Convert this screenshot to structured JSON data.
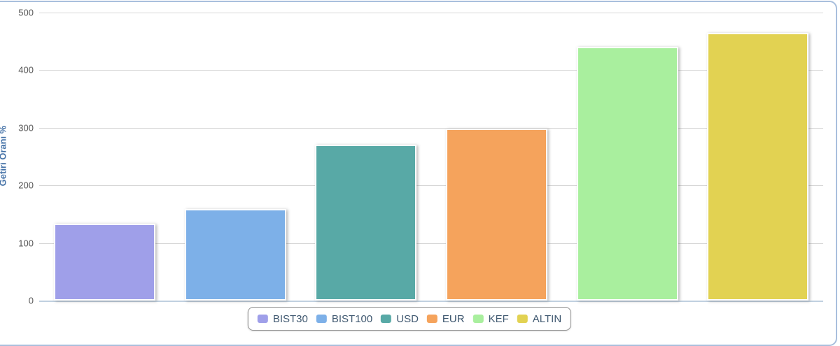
{
  "chart_data": {
    "type": "bar",
    "title": "",
    "categories": [
      "BIST30",
      "BIST100",
      "USD",
      "EUR",
      "KEF",
      "ALTIN"
    ],
    "values": [
      133,
      159,
      271,
      299,
      441,
      465
    ],
    "bar_colors": [
      "#9f9fe9",
      "#7db0e8",
      "#58a9a6",
      "#f5a35c",
      "#a9ef9e",
      "#e2d252"
    ],
    "xlabel": "",
    "ylabel": "Getiri Oranı %",
    "ylim": [
      0,
      500
    ],
    "yticks": [
      0,
      100,
      200,
      300,
      400,
      500
    ],
    "grid": true,
    "legend_position": "bottom-center",
    "legend_entries": [
      "BIST30",
      "BIST100",
      "USD",
      "EUR",
      "KEF",
      "ALTIN"
    ]
  },
  "colors": {
    "axis_title": "#4572a7",
    "tick_label": "#555555",
    "gridline": "#d6d6d6",
    "axis_line": "#c0d0e0",
    "legend_text": "#3e576f",
    "legend_border": "#8f8f8f",
    "container_border": "#a9bfdd"
  }
}
